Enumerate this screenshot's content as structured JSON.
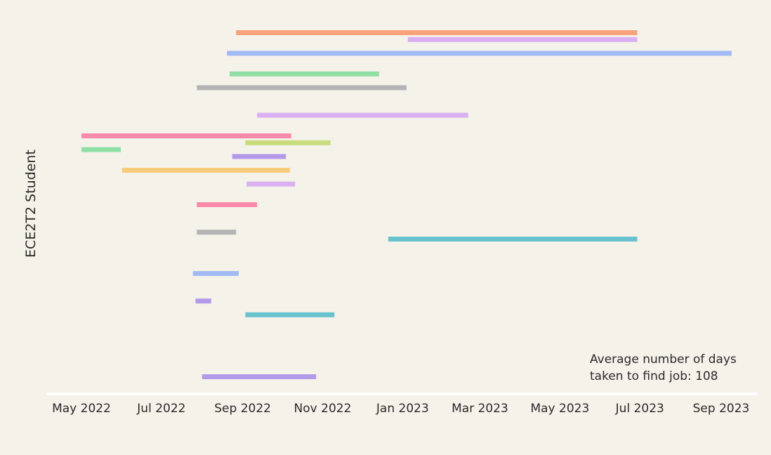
{
  "chart_data": {
    "type": "gantt",
    "ylabel": "ECE2T2 Student",
    "xlabel": "",
    "title": "",
    "x_ticks": [
      "May 2022",
      "Jul 2022",
      "Sep 2022",
      "Nov 2022",
      "Jan 2023",
      "Mar 2023",
      "May 2023",
      "Jul 2023",
      "Sep 2023"
    ],
    "xlim": [
      "2022-04-10",
      "2023-09-30"
    ],
    "grid": false,
    "annotation": {
      "line1": "Average number of days",
      "line2": "taken to find job: 108"
    },
    "bars": [
      {
        "row": 0,
        "start": "2022-08-27",
        "end": "2023-06-29",
        "color": "#f7a27a"
      },
      {
        "row": 0.5,
        "start": "2023-01-05",
        "end": "2023-06-29",
        "color": "#dbb0f2"
      },
      {
        "row": 1.5,
        "start": "2022-08-20",
        "end": "2023-09-09",
        "color": "#a3bbf4"
      },
      {
        "row": 3,
        "start": "2022-08-22",
        "end": "2022-12-14",
        "color": "#8fdea3"
      },
      {
        "row": 4,
        "start": "2022-07-28",
        "end": "2023-01-04",
        "color": "#b3b3b3"
      },
      {
        "row": 6,
        "start": "2022-09-12",
        "end": "2023-02-20",
        "color": "#dbb0f2"
      },
      {
        "row": 7.5,
        "start": "2022-05-01",
        "end": "2022-10-08",
        "color": "#f98aaa"
      },
      {
        "row": 8,
        "start": "2022-09-03",
        "end": "2022-11-07",
        "color": "#c8dc7c"
      },
      {
        "row": 8.5,
        "start": "2022-05-01",
        "end": "2022-05-31",
        "color": "#8fdea3"
      },
      {
        "row": 9,
        "start": "2022-08-24",
        "end": "2022-10-04",
        "color": "#b39ae8"
      },
      {
        "row": 10,
        "start": "2022-06-01",
        "end": "2022-10-07",
        "color": "#f7cc7a"
      },
      {
        "row": 11,
        "start": "2022-09-04",
        "end": "2022-10-11",
        "color": "#dbb0f2"
      },
      {
        "row": 12.5,
        "start": "2022-07-28",
        "end": "2022-09-12",
        "color": "#f98aaa"
      },
      {
        "row": 14.5,
        "start": "2022-07-28",
        "end": "2022-08-27",
        "color": "#b3b3b3"
      },
      {
        "row": 15,
        "start": "2022-12-21",
        "end": "2023-06-29",
        "color": "#68c3cf"
      },
      {
        "row": 17.5,
        "start": "2022-07-25",
        "end": "2022-08-29",
        "color": "#a3bbf4"
      },
      {
        "row": 19.5,
        "start": "2022-07-27",
        "end": "2022-08-08",
        "color": "#b39ae8"
      },
      {
        "row": 20.5,
        "start": "2022-09-03",
        "end": "2022-11-10",
        "color": "#68c3cf"
      },
      {
        "row": 25,
        "start": "2022-08-01",
        "end": "2022-10-27",
        "color": "#b39ae8"
      }
    ]
  }
}
